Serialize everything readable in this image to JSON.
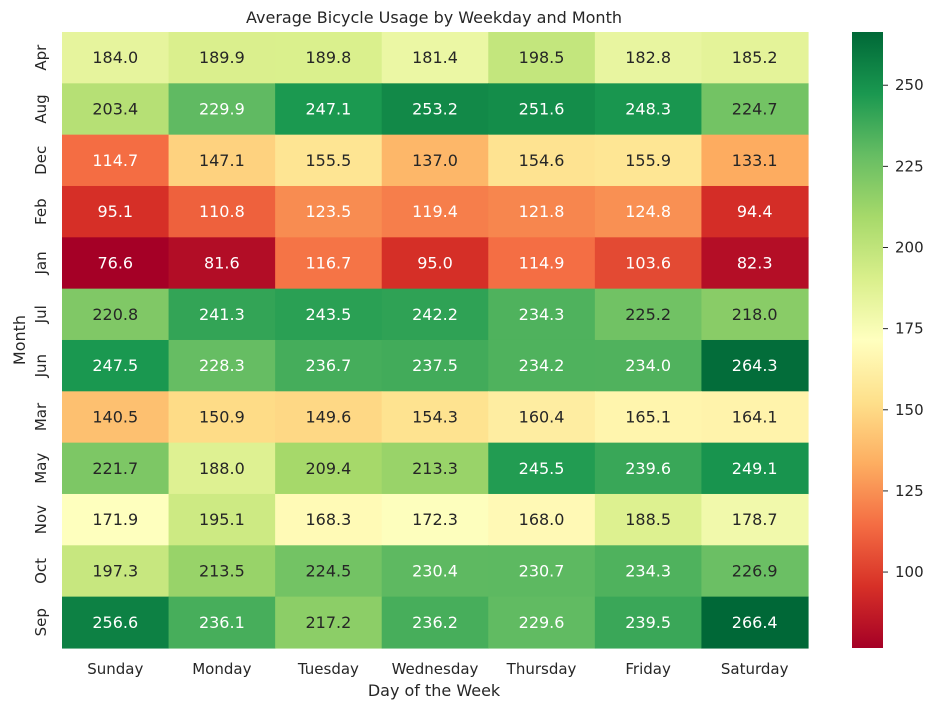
{
  "chart_data": {
    "type": "heatmap",
    "title": "Average Bicycle Usage by Weekday and Month",
    "xlabel": "Day of the Week",
    "ylabel": "Month",
    "x": [
      "Sunday",
      "Monday",
      "Tuesday",
      "Wednesday",
      "Thursday",
      "Friday",
      "Saturday"
    ],
    "y": [
      "Apr",
      "Aug",
      "Dec",
      "Feb",
      "Jan",
      "Jul",
      "Jun",
      "Mar",
      "May",
      "Nov",
      "Oct",
      "Sep"
    ],
    "values": [
      [
        184.0,
        189.9,
        189.8,
        181.4,
        198.5,
        182.8,
        185.2
      ],
      [
        203.4,
        229.9,
        247.1,
        253.2,
        251.6,
        248.3,
        224.7
      ],
      [
        114.7,
        147.1,
        155.5,
        137.0,
        154.6,
        155.9,
        133.1
      ],
      [
        95.1,
        110.8,
        123.5,
        119.4,
        121.8,
        124.8,
        94.4
      ],
      [
        76.6,
        81.6,
        116.7,
        95.0,
        114.9,
        103.6,
        82.3
      ],
      [
        220.8,
        241.3,
        243.5,
        242.2,
        234.3,
        225.2,
        218.0
      ],
      [
        247.5,
        228.3,
        236.7,
        237.5,
        234.2,
        234.0,
        264.3
      ],
      [
        140.5,
        150.9,
        149.6,
        154.3,
        160.4,
        165.1,
        164.1
      ],
      [
        221.7,
        188.0,
        209.4,
        213.3,
        245.5,
        239.6,
        249.1
      ],
      [
        171.9,
        195.1,
        168.3,
        172.3,
        168.0,
        188.5,
        178.7
      ],
      [
        197.3,
        213.5,
        224.5,
        230.4,
        230.7,
        234.3,
        226.9
      ],
      [
        256.6,
        236.1,
        217.2,
        236.2,
        229.6,
        239.5,
        266.4
      ]
    ],
    "value_format": "0.0",
    "colormap": "RdYlGn",
    "color_range": [
      76.6,
      266.4
    ],
    "colorbar_ticks": [
      100,
      125,
      150,
      175,
      200,
      225,
      250
    ],
    "colorbar_tick_labels": [
      "100",
      "125",
      "150",
      "175",
      "200",
      "225",
      "250"
    ]
  }
}
